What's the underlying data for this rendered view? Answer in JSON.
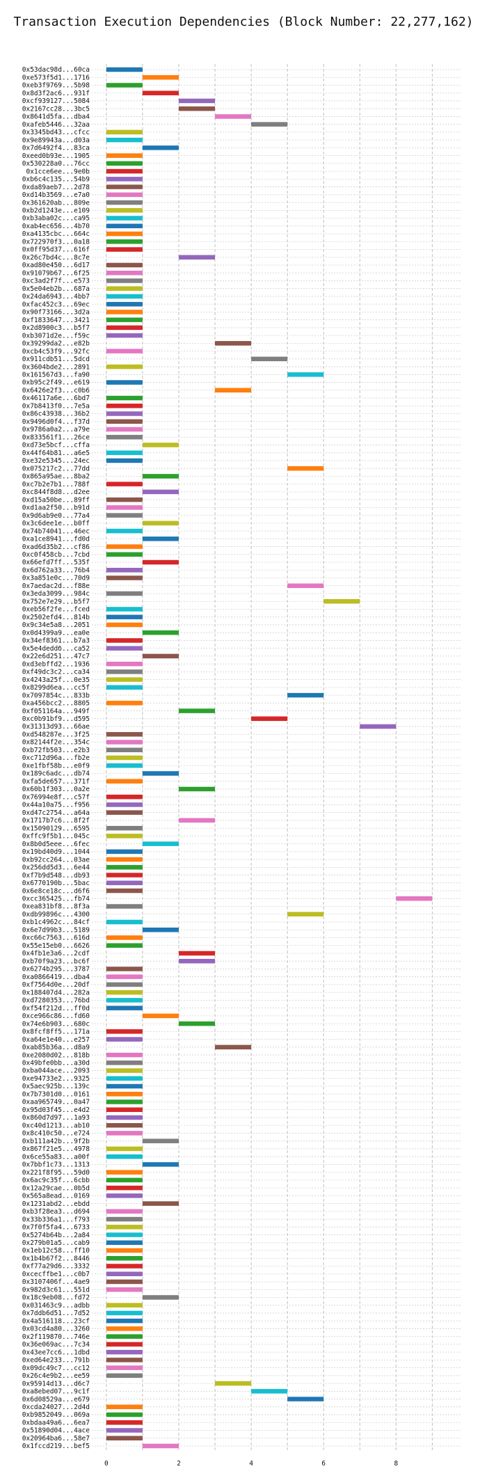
{
  "chart_data": {
    "type": "bar",
    "orientation": "horizontal-gantt",
    "title": "Transaction Execution Dependencies (Block Number: 22,277,162)",
    "xlabel": "",
    "ylabel": "",
    "xlim": [
      -0.4,
      9.8
    ],
    "xticks": [
      0,
      2,
      4,
      6,
      8
    ],
    "grid": true,
    "colors": [
      "#1f77b4",
      "#ff7f0e",
      "#2ca02c",
      "#d62728",
      "#9467bd",
      "#8c564b",
      "#e377c2",
      "#7f7f7f",
      "#bcbd22",
      "#17becf"
    ],
    "transactions": [
      {
        "label": "0x53dac98d...60ca",
        "start": 0
      },
      {
        "label": "0xe573f5d1...1716",
        "start": 1
      },
      {
        "label": "0xeb3f9769...5b98",
        "start": 0
      },
      {
        "label": "0x8d3f2ac6...931f",
        "start": 1
      },
      {
        "label": "0xcf939127...5084",
        "start": 2
      },
      {
        "label": "0x2167cc28...3bc5",
        "start": 2
      },
      {
        "label": "0x8641d5fa...dba4",
        "start": 3
      },
      {
        "label": "0xafeb5446...32aa",
        "start": 4
      },
      {
        "label": "0x3345bd43...cfcc",
        "start": 0
      },
      {
        "label": "0x9e89943a...d03a",
        "start": 0
      },
      {
        "label": "0x7d6492f4...83ca",
        "start": 1
      },
      {
        "label": "0xeed0b93e...1905",
        "start": 0
      },
      {
        "label": "0x530228a0...76cc",
        "start": 0
      },
      {
        "label": "0x1cce6ee...9e0b",
        "start": 0
      },
      {
        "label": "0xb6c4c135...54b9",
        "start": 0
      },
      {
        "label": "0xda89aeb7...2d78",
        "start": 0
      },
      {
        "label": "0xd14b3569...e7a0",
        "start": 0
      },
      {
        "label": "0x361620ab...809e",
        "start": 0
      },
      {
        "label": "0xb2d1243e...e109",
        "start": 0
      },
      {
        "label": "0xb3aba02c...ca95",
        "start": 0
      },
      {
        "label": "0xab4ec656...4b70",
        "start": 0
      },
      {
        "label": "0xa4135cbc...664c",
        "start": 0
      },
      {
        "label": "0x722970f3...0a18",
        "start": 0
      },
      {
        "label": "0x0ff95d37...616f",
        "start": 0
      },
      {
        "label": "0x26c7bd4c...8c7e",
        "start": 2
      },
      {
        "label": "0xad80e450...6d17",
        "start": 0
      },
      {
        "label": "0x91079b67...6f25",
        "start": 0
      },
      {
        "label": "0xc3ad2f7f...e573",
        "start": 0
      },
      {
        "label": "0x5e04eb2b...687a",
        "start": 0
      },
      {
        "label": "0x24da6943...4bb7",
        "start": 0
      },
      {
        "label": "0xfac452c3...69ec",
        "start": 0
      },
      {
        "label": "0x90f73166...3d2a",
        "start": 0
      },
      {
        "label": "0xf1833647...3421",
        "start": 0
      },
      {
        "label": "0x2d8900c3...b5f7",
        "start": 0
      },
      {
        "label": "0xb3071d2e...f59c",
        "start": 0
      },
      {
        "label": "0x39299da2...e82b",
        "start": 3
      },
      {
        "label": "0xcb4c53f9...92fc",
        "start": 0
      },
      {
        "label": "0x911cdb51...5dcd",
        "start": 4
      },
      {
        "label": "0x3604bde2...2891",
        "start": 0
      },
      {
        "label": "0x161567d3...fa90",
        "start": 5
      },
      {
        "label": "0xb95c2f49...e619",
        "start": 0
      },
      {
        "label": "0x6426e2f3...c0b6",
        "start": 3
      },
      {
        "label": "0x46117a6e...6bd7",
        "start": 0
      },
      {
        "label": "0x7b8413f0...7e5a",
        "start": 0
      },
      {
        "label": "0x86c43938...36b2",
        "start": 0
      },
      {
        "label": "0x9496d0f4...f37d",
        "start": 0
      },
      {
        "label": "0x9786a0a2...a79e",
        "start": 0
      },
      {
        "label": "0x833561f1...26ce",
        "start": 0
      },
      {
        "label": "0xd73e5bcf...cffa",
        "start": 1
      },
      {
        "label": "0x44f64b81...a6e5",
        "start": 0
      },
      {
        "label": "0xe32e5345...24ec",
        "start": 0
      },
      {
        "label": "0x075217c2...77dd",
        "start": 5
      },
      {
        "label": "0x865a95ae...8ba2",
        "start": 1
      },
      {
        "label": "0xc7b2e7b1...788f",
        "start": 0
      },
      {
        "label": "0xc844f8d8...d2ee",
        "start": 1
      },
      {
        "label": "0xd15a50be...89ff",
        "start": 0
      },
      {
        "label": "0xd1aa2f50...b91d",
        "start": 0
      },
      {
        "label": "0x9d6ab9e0...77a4",
        "start": 0
      },
      {
        "label": "0x3c6dee1e...b0ff",
        "start": 1
      },
      {
        "label": "0x74b74041...46ec",
        "start": 0
      },
      {
        "label": "0xa1ce8941...fd0d",
        "start": 1
      },
      {
        "label": "0xad6d35b2...cf86",
        "start": 0
      },
      {
        "label": "0xc0f458cb...7cbd",
        "start": 0
      },
      {
        "label": "0x66efd7ff...535f",
        "start": 1
      },
      {
        "label": "0x6d762a33...76b4",
        "start": 0
      },
      {
        "label": "0x3a851e0c...70d9",
        "start": 0
      },
      {
        "label": "0x7aedac2d...f88e",
        "start": 5
      },
      {
        "label": "0x3eda3099...984c",
        "start": 0
      },
      {
        "label": "0x752e7e29...b5f7",
        "start": 6
      },
      {
        "label": "0xeb56f2fe...fced",
        "start": 0
      },
      {
        "label": "0x2502efd4...814b",
        "start": 0
      },
      {
        "label": "0x9c34e5a8...2051",
        "start": 0
      },
      {
        "label": "0x0d4399a9...ea0e",
        "start": 1
      },
      {
        "label": "0x34ef8361...b7a3",
        "start": 0
      },
      {
        "label": "0x5e4deddб...ca52",
        "start": 0
      },
      {
        "label": "0x22e6d251...47c7",
        "start": 1
      },
      {
        "label": "0xd3ebffd2...1936",
        "start": 0
      },
      {
        "label": "0xf49dc3c2...ca34",
        "start": 0
      },
      {
        "label": "0x4243a25f...0e35",
        "start": 0
      },
      {
        "label": "0x8299d6ea...cc5f",
        "start": 0
      },
      {
        "label": "0x7097854c...833b",
        "start": 5
      },
      {
        "label": "0xa456bcc2...8805",
        "start": 0
      },
      {
        "label": "0xf051164a...949f",
        "start": 2
      },
      {
        "label": "0xc0b91bf9...d595",
        "start": 4
      },
      {
        "label": "0x31313d93...66ae",
        "start": 7
      },
      {
        "label": "0xd548287e...3f25",
        "start": 0
      },
      {
        "label": "0x82144f2e...354c",
        "start": 0
      },
      {
        "label": "0xb72fb503...e2b3",
        "start": 0
      },
      {
        "label": "0xc712d96a...fb2e",
        "start": 0
      },
      {
        "label": "0xe1fbf58b...e0f9",
        "start": 0
      },
      {
        "label": "0x189c6adc...db74",
        "start": 1
      },
      {
        "label": "0xfa5de657...371f",
        "start": 0
      },
      {
        "label": "0x60b1f303...0a2e",
        "start": 2
      },
      {
        "label": "0x76994e8f...c57f",
        "start": 0
      },
      {
        "label": "0x44a10a75...f956",
        "start": 0
      },
      {
        "label": "0xd47c2754...a64a",
        "start": 0
      },
      {
        "label": "0x1717b7c6...8f2f",
        "start": 2
      },
      {
        "label": "0x15090129...6595",
        "start": 0
      },
      {
        "label": "0xffc9f5b1...045c",
        "start": 0
      },
      {
        "label": "0x8b0d5eee...6fec",
        "start": 1
      },
      {
        "label": "0x19bd40d9...1044",
        "start": 0
      },
      {
        "label": "0xb92cc264...03ae",
        "start": 0
      },
      {
        "label": "0x256dd5d3...6e44",
        "start": 0
      },
      {
        "label": "0xf7b9d548...db93",
        "start": 0
      },
      {
        "label": "0x6770190b...5bac",
        "start": 0
      },
      {
        "label": "0x6e8ce18c...d6f6",
        "start": 0
      },
      {
        "label": "0xcc365425...fb74",
        "start": 8
      },
      {
        "label": "0xea831bf8...8f3a",
        "start": 0
      },
      {
        "label": "0xdb99896c...4300",
        "start": 5
      },
      {
        "label": "0xb1c4962c...84cf",
        "start": 0
      },
      {
        "label": "0x6e7d99b3...5189",
        "start": 1
      },
      {
        "label": "0xc66c7563...616d",
        "start": 0
      },
      {
        "label": "0x55e15eb0...6626",
        "start": 0
      },
      {
        "label": "0x4fb1e3a6...2cdf",
        "start": 2
      },
      {
        "label": "0xb70f9a23...bc6f",
        "start": 2
      },
      {
        "label": "0x6274b295...3787",
        "start": 0
      },
      {
        "label": "0xa0866419...dba4",
        "start": 0
      },
      {
        "label": "0xf7564d0e...20df",
        "start": 0
      },
      {
        "label": "0x188407d4...282a",
        "start": 0
      },
      {
        "label": "0xd7280353...76bd",
        "start": 0
      },
      {
        "label": "0xf54f212d...ff0d",
        "start": 0
      },
      {
        "label": "0xce966c86...fd60",
        "start": 1
      },
      {
        "label": "0x74e6b903...680c",
        "start": 2
      },
      {
        "label": "0x8fcf8ff5...171a",
        "start": 0
      },
      {
        "label": "0xa64e1e40...e257",
        "start": 0
      },
      {
        "label": "0xab85b36a...d8a9",
        "start": 3
      },
      {
        "label": "0xe2080d02...818b",
        "start": 0
      },
      {
        "label": "0x49bfe0bb...a30d",
        "start": 0
      },
      {
        "label": "0xba044ace...2093",
        "start": 0
      },
      {
        "label": "0xe94733e2...9325",
        "start": 0
      },
      {
        "label": "0x5aec925b...139c",
        "start": 0
      },
      {
        "label": "0x7b7301d0...0161",
        "start": 0
      },
      {
        "label": "0xaa965749...0a47",
        "start": 0
      },
      {
        "label": "0x95d03f45...e4d2",
        "start": 0
      },
      {
        "label": "0x860d7d97...1a93",
        "start": 0
      },
      {
        "label": "0xc40d1213...ab10",
        "start": 0
      },
      {
        "label": "0x8c410c50...e724",
        "start": 0
      },
      {
        "label": "0xb111a42b...9f2b",
        "start": 1
      },
      {
        "label": "0x867f21e5...4978",
        "start": 0
      },
      {
        "label": "0x6ce55a83...a00f",
        "start": 0
      },
      {
        "label": "0x7bbf1c73...1313",
        "start": 1
      },
      {
        "label": "0x221f8f95...59d0",
        "start": 0
      },
      {
        "label": "0x6ac9c35f...6cbb",
        "start": 0
      },
      {
        "label": "0x12a29cae...0b5d",
        "start": 0
      },
      {
        "label": "0x565a8ead...0169",
        "start": 0
      },
      {
        "label": "0x1231abd2...ebdd",
        "start": 1
      },
      {
        "label": "0xb3f28ea3...d694",
        "start": 0
      },
      {
        "label": "0x33b336a1...f793",
        "start": 0
      },
      {
        "label": "0x7f0f5fa4...6733",
        "start": 0
      },
      {
        "label": "0x5274b64b...2a84",
        "start": 0
      },
      {
        "label": "0x279b01a5...cab9",
        "start": 0
      },
      {
        "label": "0x1eb12c58...ff10",
        "start": 0
      },
      {
        "label": "0x1b4b67f2...8446",
        "start": 0
      },
      {
        "label": "0xf77a29d6...3332",
        "start": 0
      },
      {
        "label": "0xcecffbe1...c0b7",
        "start": 0
      },
      {
        "label": "0x3107406f...4ae9",
        "start": 0
      },
      {
        "label": "0x982d3c61...551d",
        "start": 0
      },
      {
        "label": "0x18c9eb08...fd72",
        "start": 1
      },
      {
        "label": "0x031463c9...adbb",
        "start": 0
      },
      {
        "label": "0x7ddb6d51...7d52",
        "start": 0
      },
      {
        "label": "0x4a516118...23cf",
        "start": 0
      },
      {
        "label": "0x03cd4a80...3260",
        "start": 0
      },
      {
        "label": "0x2f119870...746e",
        "start": 0
      },
      {
        "label": "0x36e069ac...7c34",
        "start": 0
      },
      {
        "label": "0x43ee7cc6...1dbd",
        "start": 0
      },
      {
        "label": "0xed64e233...791b",
        "start": 0
      },
      {
        "label": "0x09dc49c7...cc12",
        "start": 0
      },
      {
        "label": "0x26c4e9b2...ee59",
        "start": 0
      },
      {
        "label": "0x95914d13...d6c7",
        "start": 3
      },
      {
        "label": "0xa8ebed07...9c1f",
        "start": 4
      },
      {
        "label": "0x6d08529a...e679",
        "start": 5
      },
      {
        "label": "0xcda24027...2d4d",
        "start": 0
      },
      {
        "label": "0xb9852049...069a",
        "start": 0
      },
      {
        "label": "0xbdaa49a6...6ea7",
        "start": 0
      },
      {
        "label": "0x51890d04...4ace",
        "start": 0
      },
      {
        "label": "0x20964ba6...58e7",
        "start": 0
      },
      {
        "label": "0x1fccd219...bef5",
        "start": 1
      }
    ]
  }
}
